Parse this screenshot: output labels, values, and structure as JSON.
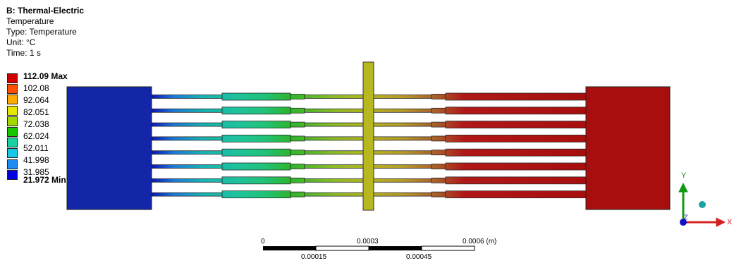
{
  "header": {
    "title": "B: Thermal-Electric",
    "lines": [
      "Temperature",
      "Type: Temperature",
      "Unit: °C",
      "Time: 1 s"
    ]
  },
  "legend": {
    "labels": [
      "112.09 Max",
      "102.08",
      "92.064",
      "82.051",
      "72.038",
      "62.024",
      "52.011",
      "41.998",
      "31.985",
      "21.972 Min"
    ],
    "colors": [
      "#d10000",
      "#ff5000",
      "#ffaa00",
      "#e6e600",
      "#a0d800",
      "#16c400",
      "#19d2a0",
      "#19c8e6",
      "#1e8cf0",
      "#0000e0"
    ]
  },
  "model_colors": {
    "left_pad": "#1426a8",
    "right_pad": "#a80e0e",
    "center_post": "#b7b71e",
    "gradient": [
      "#0a16b4",
      "#1c78d8",
      "#16b4b4",
      "#1ec39a",
      "#21c27a",
      "#2cb52c",
      "#8cbc26",
      "#b5b51e",
      "#b59a2a",
      "#a85a2a",
      "#b01818",
      "#a80e0e"
    ]
  },
  "scale_bar": {
    "top_labels": [
      "0",
      "0.0003",
      "0.0006 (m)"
    ],
    "bottom_labels": [
      "0.00015",
      "0.00045"
    ]
  },
  "triad": {
    "x_label": "X",
    "y_label": "Y",
    "z_label": "Z",
    "x_color": "#d42020",
    "y_color": "#129a12",
    "z_color": "#1010c8",
    "iso_color": "#1aa5a5"
  }
}
